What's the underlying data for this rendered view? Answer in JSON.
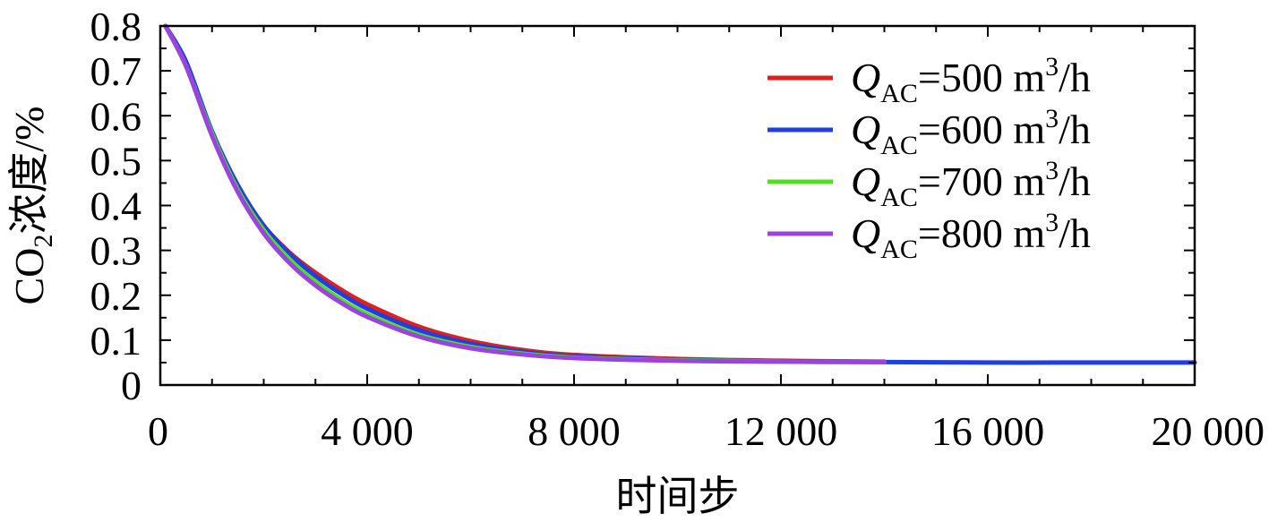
{
  "chart_data": {
    "type": "line",
    "title": "",
    "xlabel": "时间步",
    "ylabel": {
      "prefix": "CO",
      "sub": "2",
      "suffix": "浓度/%"
    },
    "xlim": [
      0,
      20000
    ],
    "ylim": [
      0,
      0.8
    ],
    "x_ticks": [
      0,
      4000,
      8000,
      12000,
      16000,
      20000
    ],
    "x_tick_labels": [
      "0",
      "4 000",
      "8 000",
      "12 000",
      "16 000",
      "20 000"
    ],
    "y_ticks": [
      0,
      0.1,
      0.2,
      0.3,
      0.4,
      0.5,
      0.6,
      0.7,
      0.8
    ],
    "y_tick_labels": [
      "0",
      "0.1",
      "0.2",
      "0.3",
      "0.4",
      "0.5",
      "0.6",
      "0.7",
      "0.8"
    ],
    "grid": false,
    "legend_position": "top-right",
    "series": [
      {
        "name": "Q_AC=500 m³/h",
        "label": {
          "var": "Q",
          "sub": "AC",
          "rest": "=500 m",
          "sup": "3",
          "tail": "/h"
        },
        "color": "#e0201e",
        "x": [
          100,
          500,
          1000,
          1500,
          2000,
          2500,
          3000,
          3500,
          4000,
          5000,
          6000,
          7000,
          8000,
          10000,
          12000,
          14000
        ],
        "y": [
          0.8,
          0.71,
          0.56,
          0.44,
          0.355,
          0.295,
          0.25,
          0.212,
          0.18,
          0.13,
          0.098,
          0.078,
          0.067,
          0.058,
          0.054,
          0.052
        ]
      },
      {
        "name": "Q_AC=600 m³/h",
        "label": {
          "var": "Q",
          "sub": "AC",
          "rest": "=600 m",
          "sup": "3",
          "tail": "/h"
        },
        "color": "#1f3fe0",
        "x": [
          100,
          500,
          1000,
          1500,
          2000,
          2500,
          3000,
          3500,
          4000,
          5000,
          6000,
          7000,
          8000,
          10000,
          12000,
          14000,
          16000,
          18000,
          20000
        ],
        "y": [
          0.8,
          0.72,
          0.565,
          0.445,
          0.355,
          0.292,
          0.243,
          0.203,
          0.17,
          0.122,
          0.092,
          0.074,
          0.064,
          0.056,
          0.053,
          0.051,
          0.05,
          0.05,
          0.05
        ]
      },
      {
        "name": "Q_AC=700 m³/h",
        "label": {
          "var": "Q",
          "sub": "AC",
          "rest": "=700 m",
          "sup": "3",
          "tail": "/h"
        },
        "color": "#52e01e",
        "x": [
          100,
          500,
          1000,
          1500,
          2000,
          2500,
          3000,
          3500,
          4000,
          5000,
          6000,
          7000,
          8000,
          10000,
          12000,
          14000
        ],
        "y": [
          0.8,
          0.71,
          0.56,
          0.435,
          0.345,
          0.28,
          0.23,
          0.19,
          0.158,
          0.112,
          0.085,
          0.07,
          0.061,
          0.055,
          0.052,
          0.051
        ]
      },
      {
        "name": "Q_AC=800 m³/h",
        "label": {
          "var": "Q",
          "sub": "AC",
          "rest": "=800 m",
          "sup": "3",
          "tail": "/h"
        },
        "color": "#9a44e0",
        "x": [
          100,
          500,
          1000,
          1500,
          2000,
          2500,
          3000,
          3500,
          4000,
          5000,
          6000,
          7000,
          8000,
          10000,
          12000,
          14000
        ],
        "y": [
          0.8,
          0.71,
          0.555,
          0.43,
          0.338,
          0.272,
          0.222,
          0.183,
          0.152,
          0.108,
          0.082,
          0.068,
          0.06,
          0.054,
          0.052,
          0.051
        ]
      }
    ]
  }
}
